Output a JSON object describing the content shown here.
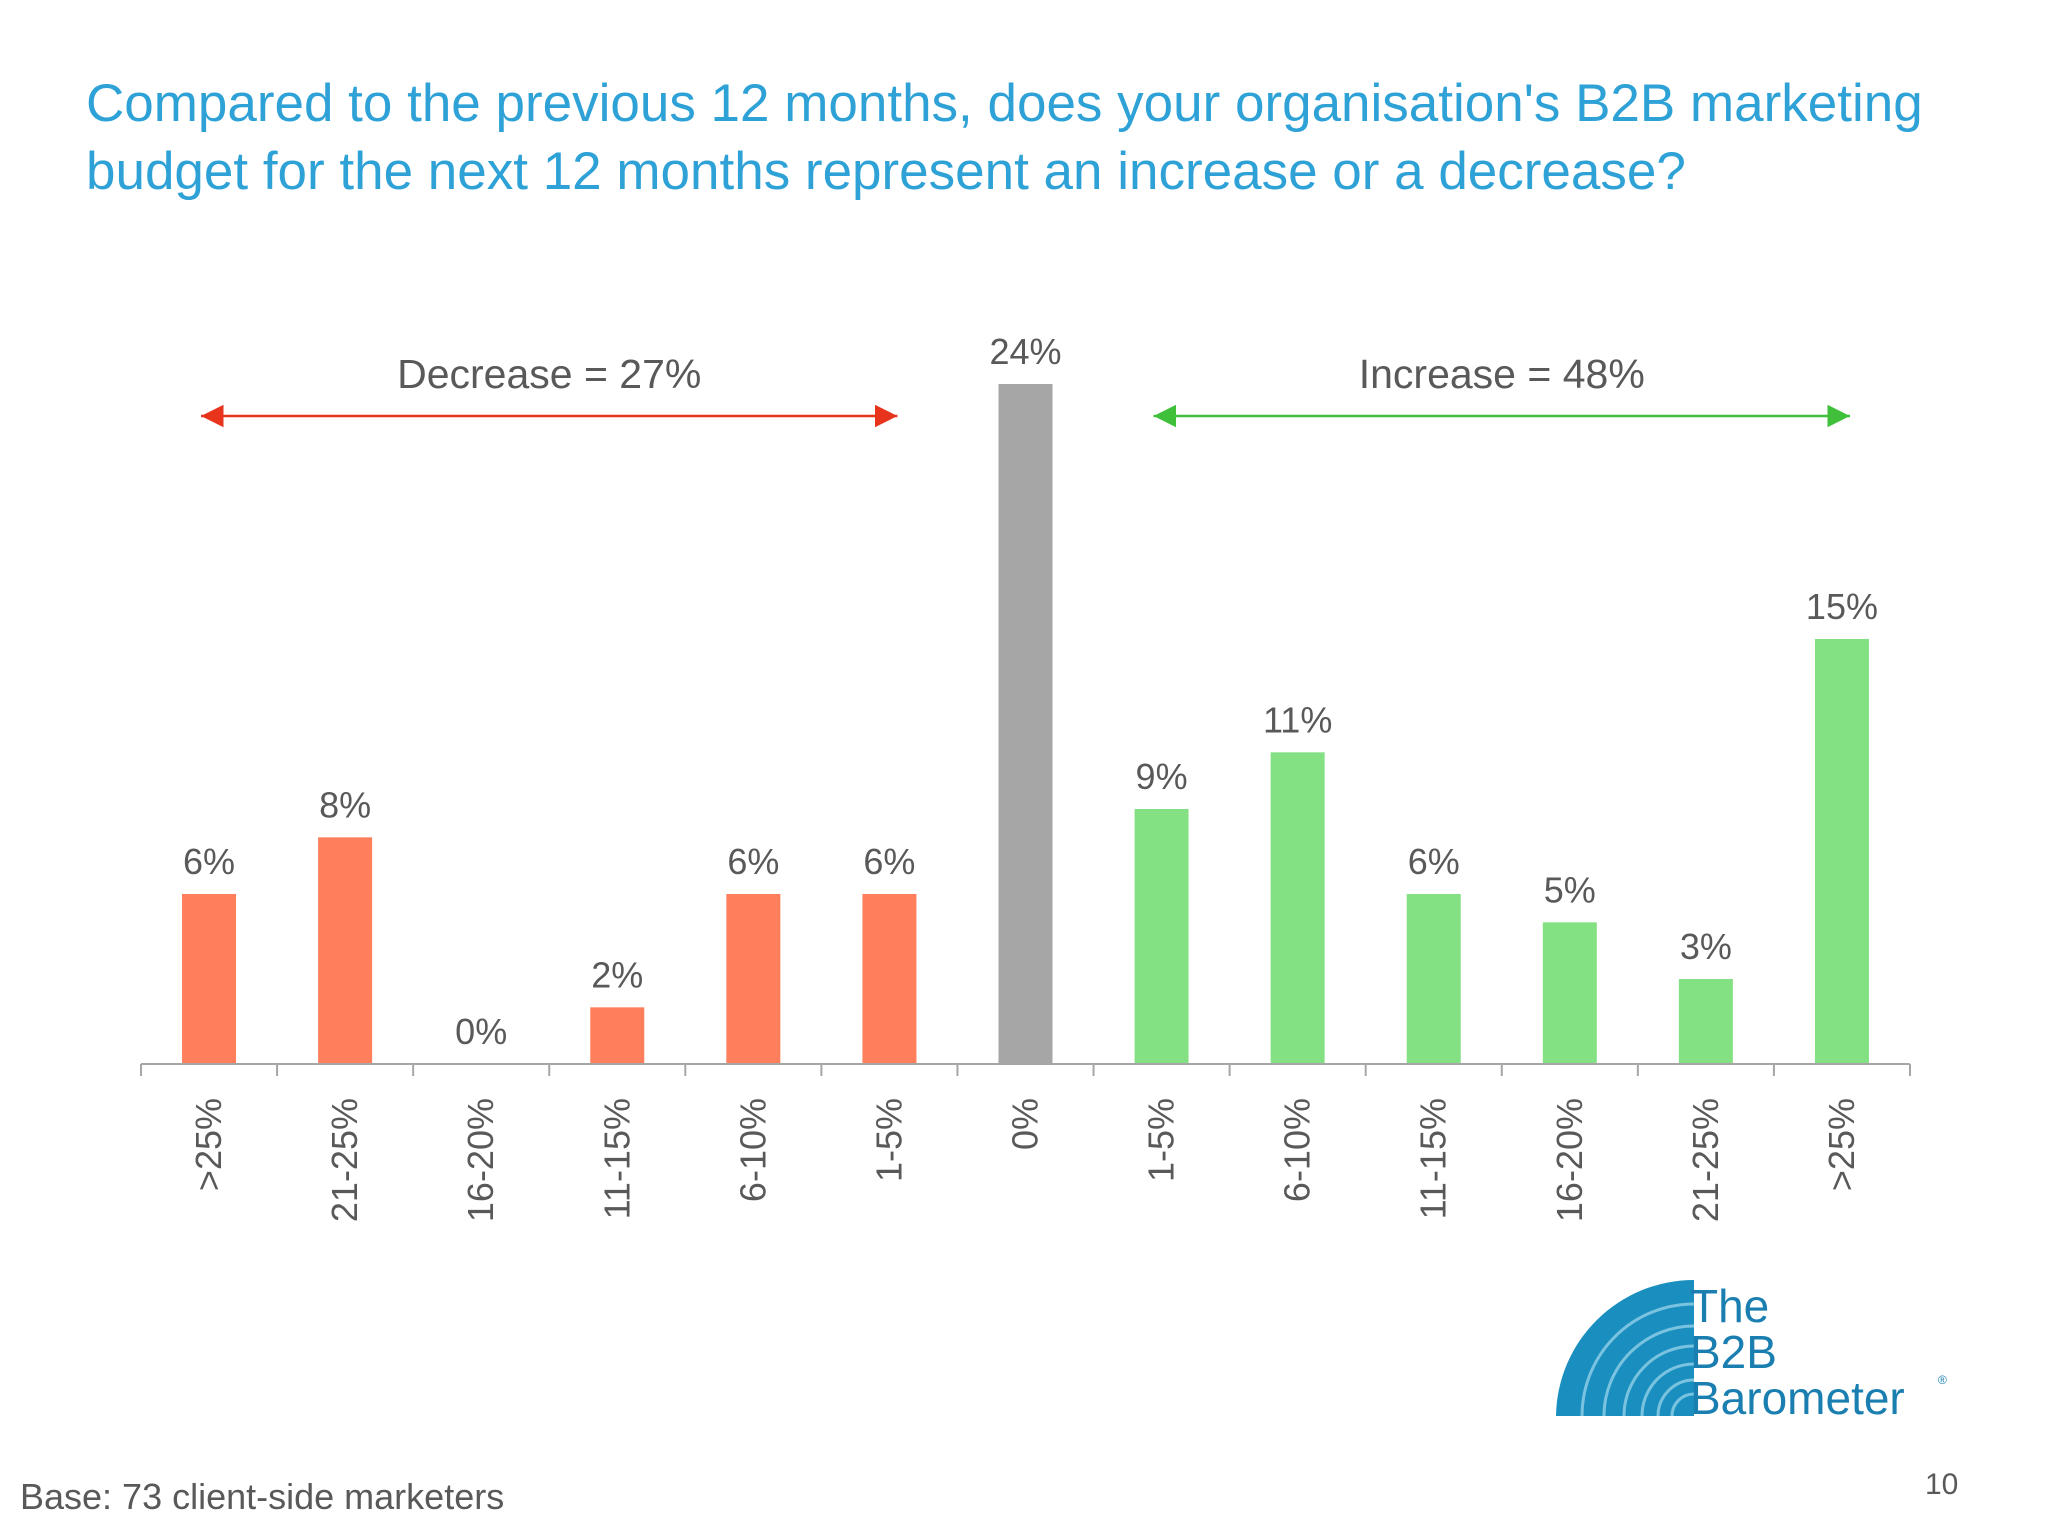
{
  "slide": {
    "title": "Compared to the previous 12 months, does your organisation's B2B marketing budget for the next 12 months represent an increase or a decrease?",
    "footnote": "Base: 73 client-side marketers",
    "page_number": "10"
  },
  "logo": {
    "line1": "The",
    "line2": "B2B",
    "line3": "Barometer",
    "mark": "®"
  },
  "colors": {
    "decrease": "#ff7f5c",
    "neutral": "#a6a6a6",
    "increase": "#84e183",
    "decrease_arrow": "#e8341c",
    "increase_arrow": "#3fbf3a",
    "title": "#2ea2d6",
    "text": "#595959"
  },
  "chart_data": {
    "type": "bar",
    "categories": [
      ">25%",
      "21-25%",
      "16-20%",
      "11-15%",
      "6-10%",
      "1-5%",
      "0%",
      "1-5%",
      "6-10%",
      "11-15%",
      "16-20%",
      "21-25%",
      ">25%"
    ],
    "values": [
      6,
      8,
      0,
      2,
      6,
      6,
      24,
      9,
      11,
      6,
      5,
      3,
      15
    ],
    "data_labels": [
      "6%",
      "8%",
      "0%",
      "2%",
      "6%",
      "6%",
      "24%",
      "9%",
      "11%",
      "6%",
      "5%",
      "3%",
      "15%"
    ],
    "groups": [
      "decrease",
      "decrease",
      "decrease",
      "decrease",
      "decrease",
      "decrease",
      "neutral",
      "increase",
      "increase",
      "increase",
      "increase",
      "increase",
      "increase"
    ],
    "ylim": [
      0,
      24
    ],
    "grid": false,
    "annotations": [
      {
        "text": "Decrease = 27%",
        "from_index": 0,
        "to_index": 5,
        "group": "decrease"
      },
      {
        "text": "Increase = 48%",
        "from_index": 7,
        "to_index": 12,
        "group": "increase"
      }
    ]
  }
}
